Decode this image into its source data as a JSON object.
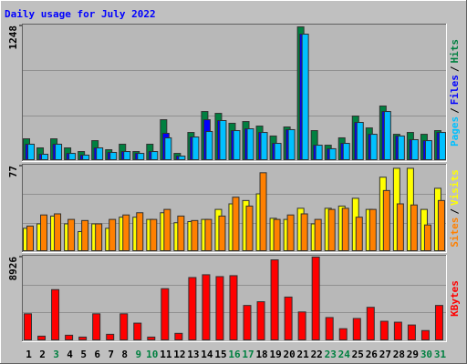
{
  "chart_data": {
    "type": "bar",
    "title": "Daily usage for July 2022",
    "categories": [
      "1",
      "2",
      "3",
      "4",
      "5",
      "6",
      "7",
      "8",
      "9",
      "10",
      "11",
      "12",
      "13",
      "14",
      "15",
      "16",
      "17",
      "18",
      "19",
      "20",
      "21",
      "22",
      "23",
      "24",
      "25",
      "26",
      "27",
      "28",
      "29",
      "30",
      "31"
    ],
    "category_colors": [
      "#000000",
      "#000000",
      "#008040",
      "#000000",
      "#000000",
      "#000000",
      "#000000",
      "#000000",
      "#008040",
      "#008040",
      "#000000",
      "#000000",
      "#000000",
      "#000000",
      "#000000",
      "#008040",
      "#008040",
      "#000000",
      "#000000",
      "#000000",
      "#000000",
      "#000000",
      "#008040",
      "#008040",
      "#000000",
      "#000000",
      "#000000",
      "#000000",
      "#000000",
      "#008040",
      "#008040"
    ],
    "panels": [
      {
        "ylim": [
          0,
          1248
        ],
        "yticks": [
          1248
        ],
        "legend_separator": "/",
        "series": [
          {
            "name": "Hits",
            "color": "#008040",
            "values": [
              202,
              118,
              202,
              118,
              84,
              185,
              101,
              152,
              84,
              152,
              379,
              67,
              261,
              455,
              438,
              346,
              362,
              320,
              228,
              312,
              1239,
              278,
              143,
              211,
              413,
              303,
              506,
              244,
              261,
              244,
              278
            ]
          },
          {
            "name": "Files",
            "color": "#0000ff",
            "values": [
              152,
              59,
              152,
              67,
              51,
              118,
              76,
              84,
              67,
              84,
              253,
              42,
              219,
              379,
              371,
              278,
              295,
              261,
              160,
              287,
              1172,
              143,
              110,
              160,
              354,
              244,
              455,
              228,
              194,
              185,
              261
            ]
          },
          {
            "name": "Pages",
            "color": "#00c0ff",
            "values": [
              152,
              59,
              152,
              67,
              51,
              118,
              76,
              84,
              67,
              84,
              211,
              42,
              219,
              270,
              371,
              278,
              295,
              261,
              160,
              287,
              1172,
              143,
              110,
              160,
              354,
              244,
              455,
              228,
              194,
              185,
              261
            ]
          }
        ]
      },
      {
        "ylim": [
          0,
          77
        ],
        "yticks": [
          77
        ],
        "legend_separator": "/",
        "series": [
          {
            "name": "Visits",
            "color": "#ffff00",
            "values": [
              21,
              25,
              32,
              25,
              18,
              25,
              21,
              31,
              31,
              29,
              35,
              26,
              27,
              29,
              38,
              43,
              46,
              52,
              30,
              29,
              39,
              25,
              39,
              41,
              48,
              38,
              67,
              75,
              75,
              38,
              57
            ]
          },
          {
            "name": "Sites",
            "color": "#ff8000",
            "values": [
              23,
              33,
              34,
              29,
              28,
              25,
              29,
              33,
              35,
              29,
              38,
              32,
              28,
              29,
              32,
              49,
              41,
              71,
              29,
              33,
              34,
              29,
              38,
              39,
              31,
              38,
              55,
              43,
              42,
              24,
              46
            ]
          }
        ]
      },
      {
        "ylim": [
          0,
          8926
        ],
        "yticks": [
          8926
        ],
        "legend_separator": "/",
        "series": [
          {
            "name": "KBytes",
            "color": "#ff0000",
            "values": [
              2877,
              496,
              5455,
              595,
              397,
              2877,
              694,
              2877,
              1885,
              397,
              5555,
              794,
              6745,
              7043,
              6844,
              6944,
              3769,
              4166,
              8630,
              4662,
              3075,
              8926,
              2480,
              1290,
              2380,
              3571,
              2083,
              1984,
              1686,
              1091,
              3769
            ]
          }
        ]
      }
    ]
  }
}
